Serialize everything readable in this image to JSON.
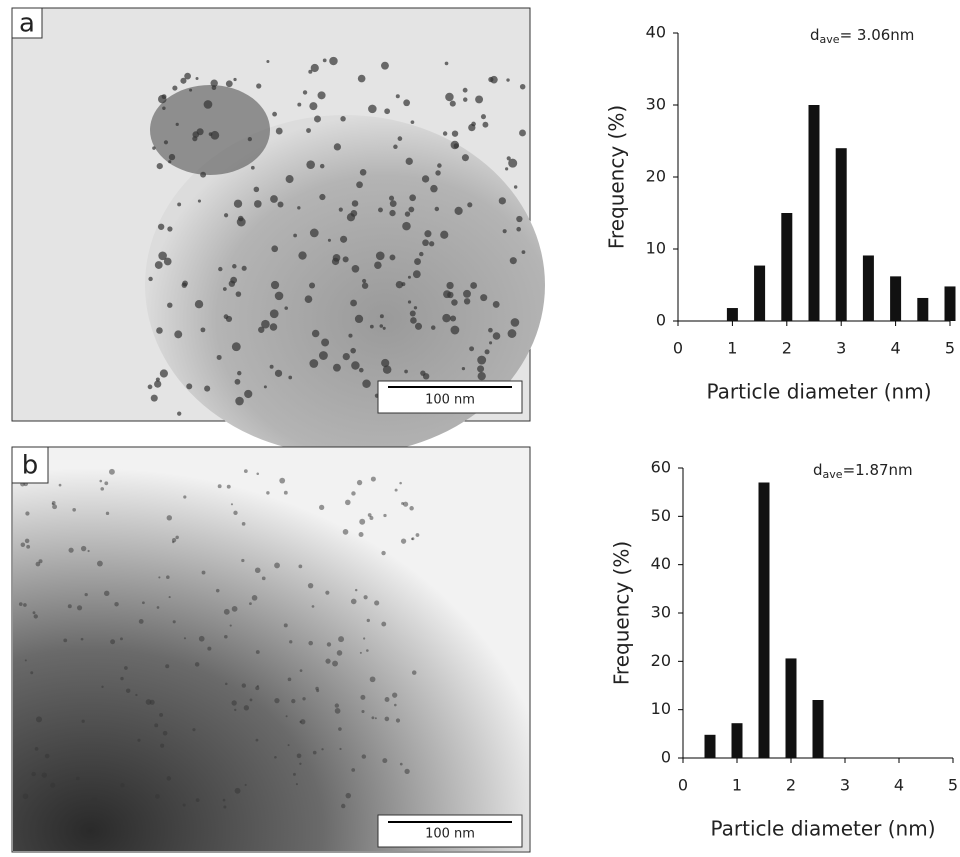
{
  "images": [
    {
      "label": "a",
      "scale_bar": "100 nm"
    },
    {
      "label": "b",
      "scale_bar": "100 nm"
    }
  ],
  "chart_data": [
    {
      "type": "bar",
      "annotation": [
        "d",
        "ave",
        "= 3.06nm"
      ],
      "x_label": "Particle diameter (nm)",
      "y_label": "Frequency (%)",
      "x": [
        1,
        1.5,
        2,
        2.5,
        3,
        3.5,
        4,
        4.5,
        5
      ],
      "values": [
        1.8,
        7.7,
        15,
        30,
        24,
        9.1,
        6.2,
        3.2,
        4.8
      ],
      "color": "#111111",
      "xlim": [
        0,
        5
      ],
      "xticks": [
        0,
        1,
        2,
        3,
        4,
        5
      ],
      "ylim": [
        0,
        40
      ],
      "yticks": [
        0,
        10,
        20,
        30,
        40
      ]
    },
    {
      "type": "bar",
      "annotation": [
        "d",
        "ave",
        "=1.87nm"
      ],
      "x_label": "Particle diameter (nm)",
      "y_label": "Frequency (%)",
      "x": [
        0.5,
        1,
        1.5,
        2,
        2.5
      ],
      "values": [
        4.8,
        7.2,
        57,
        20.6,
        12
      ],
      "color": "#111111",
      "xlim": [
        0,
        5
      ],
      "xticks": [
        0,
        1,
        2,
        3,
        4,
        5
      ],
      "ylim": [
        0,
        60
      ],
      "yticks": [
        0,
        10,
        20,
        30,
        40,
        50,
        60
      ]
    }
  ]
}
